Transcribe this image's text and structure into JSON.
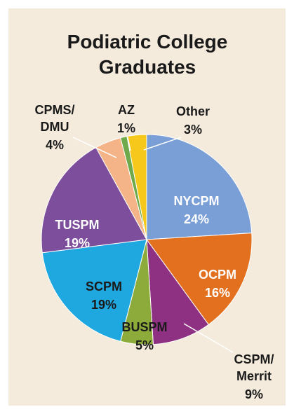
{
  "chart_data": {
    "type": "pie",
    "title": "Podiatric College Graduates",
    "categories": [
      "NYCPM",
      "OCPM",
      "CSPM/Merrit",
      "BUSPM",
      "SCPM",
      "TUSPM",
      "CPMS/DMU",
      "AZ",
      "Other"
    ],
    "values": [
      24,
      16,
      9,
      5,
      19,
      19,
      4,
      1,
      3
    ],
    "value_labels": [
      "24%",
      "16%",
      "9%",
      "5%",
      "19%",
      "19%",
      "4%",
      "1%",
      "3%"
    ],
    "colors": [
      "#7a9fd6",
      "#e2701f",
      "#8e3183",
      "#8dab3a",
      "#1fa7df",
      "#7c4e9b",
      "#f5b487",
      "#6ea94c",
      "#f6c81c"
    ]
  }
}
